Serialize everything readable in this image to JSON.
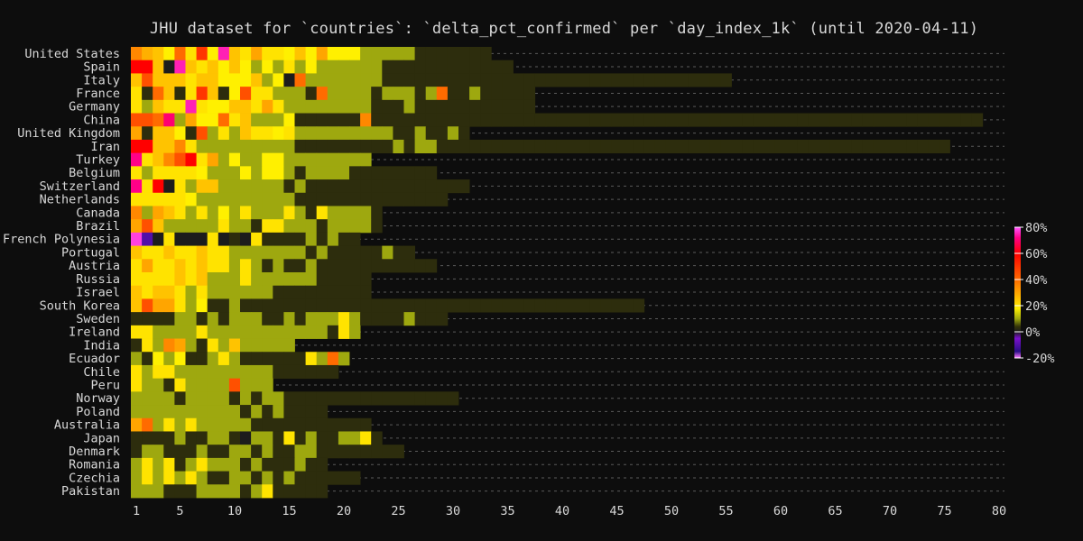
{
  "chart_data": {
    "type": "heatmap",
    "title": "JHU dataset for `countries`: `delta_pct_confirmed` per `day_index_1k` (until 2020-04-11)",
    "xlabel": "",
    "ylabel": "",
    "x_tick_labels": [
      1,
      5,
      10,
      15,
      20,
      25,
      30,
      35,
      40,
      45,
      50,
      55,
      60,
      65,
      70,
      75,
      80
    ],
    "xlim": [
      1,
      80
    ],
    "grid": true,
    "legend_placement": "right",
    "colorbar": {
      "ticks": [
        80,
        60,
        40,
        20,
        0,
        -20
      ],
      "tick_labels": [
        "80%",
        "60%",
        "40%",
        "20%",
        "0%",
        "-20%"
      ],
      "range": [
        -20,
        80
      ],
      "stops": [
        {
          "v": -20,
          "color": "#ff7bff"
        },
        {
          "v": -15,
          "color": "#2a0e86"
        },
        {
          "v": -5,
          "color": "#7a10cc"
        },
        {
          "v": 0,
          "color": "#1c1c1c"
        },
        {
          "v": 4,
          "color": "#333308"
        },
        {
          "v": 10,
          "color": "#9ea80f"
        },
        {
          "v": 18,
          "color": "#fff000"
        },
        {
          "v": 28,
          "color": "#ffb000"
        },
        {
          "v": 42,
          "color": "#ff6000"
        },
        {
          "v": 60,
          "color": "#ff0000"
        },
        {
          "v": 72,
          "color": "#ff0088"
        },
        {
          "v": 80,
          "color": "#ff55ff"
        }
      ]
    },
    "rows": [
      {
        "label": "United States",
        "values": [
          35,
          28,
          25,
          18,
          40,
          20,
          50,
          18,
          75,
          25,
          20,
          30,
          20,
          20,
          18,
          25,
          18,
          30,
          18,
          18,
          18,
          10,
          10,
          10,
          10,
          10,
          3,
          3,
          3,
          3,
          3,
          3,
          3
        ]
      },
      {
        "label": "Spain",
        "values": [
          60,
          60,
          25,
          0,
          75,
          25,
          20,
          25,
          18,
          25,
          18,
          10,
          18,
          10,
          20,
          10,
          18,
          10,
          10,
          10,
          10,
          10,
          10,
          3,
          3,
          3,
          3,
          3,
          3,
          3,
          3,
          3,
          3,
          3,
          3
        ]
      },
      {
        "label": "Italy",
        "values": [
          25,
          45,
          25,
          25,
          25,
          20,
          25,
          25,
          18,
          18,
          18,
          25,
          10,
          18,
          0,
          40,
          10,
          10,
          10,
          10,
          10,
          10,
          10,
          3,
          3,
          3,
          3,
          3,
          3,
          3,
          3,
          3,
          3,
          3,
          3,
          3,
          3,
          3,
          3,
          3,
          3,
          3,
          3,
          3,
          3,
          3,
          3,
          3,
          3,
          3,
          3,
          3,
          3,
          3,
          3
        ]
      },
      {
        "label": "France",
        "values": [
          20,
          3,
          40,
          25,
          3,
          20,
          50,
          25,
          3,
          18,
          45,
          20,
          20,
          10,
          10,
          10,
          3,
          40,
          10,
          10,
          10,
          10,
          3,
          10,
          10,
          10,
          3,
          10,
          40,
          3,
          3,
          10,
          3,
          3,
          3,
          3,
          3
        ]
      },
      {
        "label": "Germany",
        "values": [
          20,
          10,
          25,
          20,
          20,
          75,
          20,
          18,
          18,
          25,
          25,
          20,
          30,
          20,
          10,
          10,
          10,
          10,
          10,
          10,
          10,
          10,
          3,
          3,
          3,
          10,
          3,
          3,
          3,
          3,
          3,
          3,
          3,
          3,
          3,
          3,
          3
        ]
      },
      {
        "label": "China",
        "values": [
          45,
          45,
          40,
          70,
          10,
          30,
          18,
          18,
          40,
          20,
          25,
          10,
          10,
          10,
          18,
          3,
          3,
          3,
          3,
          3,
          3,
          35,
          3,
          3,
          3,
          3,
          3,
          3,
          3,
          3,
          3,
          3,
          3,
          3,
          3,
          3,
          3,
          3,
          3,
          3,
          3,
          3,
          3,
          3,
          3,
          3,
          3,
          3,
          3,
          3,
          3,
          3,
          3,
          3,
          3,
          3,
          3,
          3,
          3,
          3,
          3,
          3,
          3,
          3,
          3,
          3,
          3,
          3,
          3,
          3,
          3,
          3,
          3,
          3,
          3,
          3,
          3,
          3
        ]
      },
      {
        "label": "United Kingdom",
        "values": [
          30,
          3,
          25,
          25,
          18,
          3,
          45,
          10,
          20,
          10,
          25,
          20,
          20,
          18,
          20,
          10,
          10,
          10,
          10,
          10,
          10,
          10,
          10,
          10,
          3,
          3,
          10,
          3,
          3,
          10,
          3
        ]
      },
      {
        "label": "Iran",
        "values": [
          60,
          60,
          25,
          25,
          35,
          20,
          10,
          10,
          10,
          10,
          10,
          10,
          10,
          10,
          10,
          3,
          3,
          3,
          3,
          3,
          3,
          3,
          3,
          3,
          10,
          3,
          10,
          10,
          3,
          3,
          3,
          3,
          3,
          3,
          3,
          3,
          3,
          3,
          3,
          3,
          3,
          3,
          3,
          3,
          3,
          3,
          3,
          3,
          3,
          3,
          3,
          3,
          3,
          3,
          3,
          3,
          3,
          3,
          3,
          3,
          3,
          3,
          3,
          3,
          3,
          3,
          3,
          3,
          3,
          3,
          3,
          3,
          3,
          3,
          3
        ]
      },
      {
        "label": "Turkey",
        "values": [
          72,
          20,
          25,
          35,
          45,
          60,
          20,
          30,
          10,
          18,
          10,
          10,
          18,
          18,
          10,
          10,
          10,
          10,
          10,
          10,
          10,
          10
        ]
      },
      {
        "label": "Belgium",
        "values": [
          20,
          10,
          20,
          20,
          20,
          20,
          18,
          10,
          10,
          10,
          18,
          10,
          18,
          18,
          10,
          3,
          10,
          10,
          10,
          10,
          3,
          3,
          3,
          3,
          3,
          3,
          3,
          3
        ]
      },
      {
        "label": "Switzerland",
        "values": [
          72,
          20,
          60,
          0,
          20,
          10,
          25,
          25,
          10,
          10,
          10,
          10,
          10,
          10,
          3,
          10,
          3,
          3,
          3,
          3,
          3,
          3,
          3,
          3,
          3,
          3,
          3,
          3,
          3,
          3,
          3
        ]
      },
      {
        "label": "Netherlands",
        "values": [
          20,
          20,
          20,
          20,
          20,
          18,
          10,
          10,
          10,
          10,
          10,
          10,
          10,
          10,
          10,
          3,
          3,
          3,
          3,
          3,
          3,
          3,
          3,
          3,
          3,
          3,
          3,
          3,
          3
        ]
      },
      {
        "label": "Canada",
        "values": [
          35,
          10,
          30,
          25,
          20,
          10,
          20,
          10,
          18,
          10,
          20,
          10,
          10,
          10,
          20,
          10,
          3,
          20,
          10,
          10,
          10,
          10,
          3
        ]
      },
      {
        "label": "Brazil",
        "values": [
          30,
          45,
          25,
          10,
          10,
          10,
          10,
          10,
          20,
          10,
          10,
          3,
          20,
          20,
          10,
          10,
          10,
          3,
          10,
          10,
          10,
          10,
          3
        ]
      },
      {
        "label": "French Polynesia",
        "values": [
          78,
          -10,
          0,
          20,
          0,
          0,
          0,
          20,
          0,
          3,
          0,
          20,
          3,
          3,
          3,
          3,
          10,
          3,
          10,
          3,
          3
        ]
      },
      {
        "label": "Portugal",
        "values": [
          25,
          20,
          20,
          25,
          20,
          20,
          25,
          20,
          20,
          10,
          10,
          10,
          10,
          10,
          10,
          10,
          3,
          10,
          3,
          3,
          3,
          3,
          3,
          10,
          3,
          3
        ]
      },
      {
        "label": "Austria",
        "values": [
          20,
          30,
          20,
          20,
          25,
          20,
          25,
          20,
          20,
          10,
          20,
          10,
          3,
          10,
          3,
          3,
          10,
          3,
          3,
          3,
          3,
          3,
          3,
          3,
          3,
          3,
          3,
          3
        ]
      },
      {
        "label": "Russia",
        "values": [
          20,
          20,
          20,
          20,
          25,
          20,
          25,
          10,
          10,
          10,
          20,
          10,
          10,
          10,
          10,
          10,
          10,
          3,
          3,
          3,
          3,
          3
        ]
      },
      {
        "label": "Israel",
        "values": [
          25,
          20,
          25,
          25,
          20,
          10,
          20,
          10,
          10,
          10,
          10,
          10,
          10,
          3,
          3,
          3,
          3,
          3,
          3,
          3,
          3,
          3
        ]
      },
      {
        "label": "South Korea",
        "values": [
          25,
          45,
          30,
          30,
          20,
          10,
          18,
          3,
          3,
          10,
          3,
          3,
          3,
          3,
          3,
          3,
          3,
          3,
          3,
          3,
          3,
          3,
          3,
          3,
          3,
          3,
          3,
          3,
          3,
          3,
          3,
          3,
          3,
          3,
          3,
          3,
          3,
          3,
          3,
          3,
          3,
          3,
          3,
          3,
          3,
          3,
          3
        ]
      },
      {
        "label": "Sweden",
        "values": [
          3,
          3,
          3,
          3,
          10,
          10,
          3,
          10,
          3,
          10,
          10,
          10,
          3,
          3,
          10,
          3,
          10,
          10,
          10,
          20,
          10,
          3,
          3,
          3,
          3,
          10,
          3,
          3,
          3
        ]
      },
      {
        "label": "Ireland",
        "values": [
          20,
          20,
          10,
          10,
          10,
          10,
          20,
          10,
          10,
          10,
          10,
          10,
          10,
          10,
          10,
          10,
          10,
          10,
          3,
          20,
          10
        ]
      },
      {
        "label": "India",
        "values": [
          3,
          20,
          10,
          35,
          30,
          10,
          3,
          20,
          10,
          25,
          10,
          10,
          10,
          10,
          10
        ]
      },
      {
        "label": "Ecuador",
        "values": [
          10,
          3,
          18,
          10,
          18,
          3,
          3,
          10,
          20,
          10,
          3,
          3,
          3,
          3,
          3,
          3,
          20,
          10,
          40,
          10
        ]
      },
      {
        "label": "Chile",
        "values": [
          20,
          10,
          20,
          20,
          10,
          10,
          10,
          10,
          10,
          10,
          10,
          10,
          10,
          3,
          3,
          3,
          3,
          3,
          3
        ]
      },
      {
        "label": "Peru",
        "values": [
          20,
          10,
          10,
          3,
          20,
          10,
          10,
          10,
          10,
          45,
          10,
          10,
          10
        ]
      },
      {
        "label": "Norway",
        "values": [
          10,
          10,
          10,
          10,
          3,
          10,
          10,
          10,
          10,
          3,
          10,
          3,
          10,
          10,
          3,
          3,
          3,
          3,
          3,
          3,
          3,
          3,
          3,
          3,
          3,
          3,
          3,
          3,
          3,
          3
        ]
      },
      {
        "label": "Poland",
        "values": [
          10,
          10,
          10,
          10,
          10,
          10,
          10,
          10,
          10,
          10,
          3,
          10,
          3,
          10,
          3,
          3,
          3,
          3
        ]
      },
      {
        "label": "Australia",
        "values": [
          30,
          40,
          10,
          20,
          10,
          20,
          10,
          10,
          10,
          10,
          10,
          3,
          3,
          3,
          3,
          3,
          3,
          3,
          3,
          3,
          3,
          3
        ]
      },
      {
        "label": "Japan",
        "values": [
          3,
          3,
          3,
          3,
          10,
          3,
          3,
          10,
          10,
          3,
          0,
          10,
          10,
          3,
          20,
          3,
          10,
          3,
          3,
          10,
          10,
          20,
          3
        ]
      },
      {
        "label": "Denmark",
        "values": [
          3,
          10,
          10,
          3,
          3,
          3,
          10,
          3,
          3,
          10,
          10,
          3,
          10,
          3,
          3,
          10,
          10,
          3,
          3,
          3,
          3,
          3,
          3,
          3,
          3
        ]
      },
      {
        "label": "Romania",
        "values": [
          10,
          20,
          10,
          20,
          3,
          10,
          20,
          10,
          10,
          10,
          3,
          10,
          3,
          3,
          3,
          10,
          3,
          3
        ]
      },
      {
        "label": "Czechia",
        "values": [
          10,
          20,
          10,
          20,
          10,
          20,
          10,
          3,
          3,
          10,
          10,
          3,
          10,
          3,
          10,
          3,
          3,
          3,
          3,
          3,
          3
        ]
      },
      {
        "label": "Pakistan",
        "values": [
          10,
          10,
          10,
          3,
          3,
          3,
          10,
          10,
          10,
          10,
          3,
          10,
          20,
          3,
          3,
          3,
          3,
          3
        ]
      }
    ]
  }
}
